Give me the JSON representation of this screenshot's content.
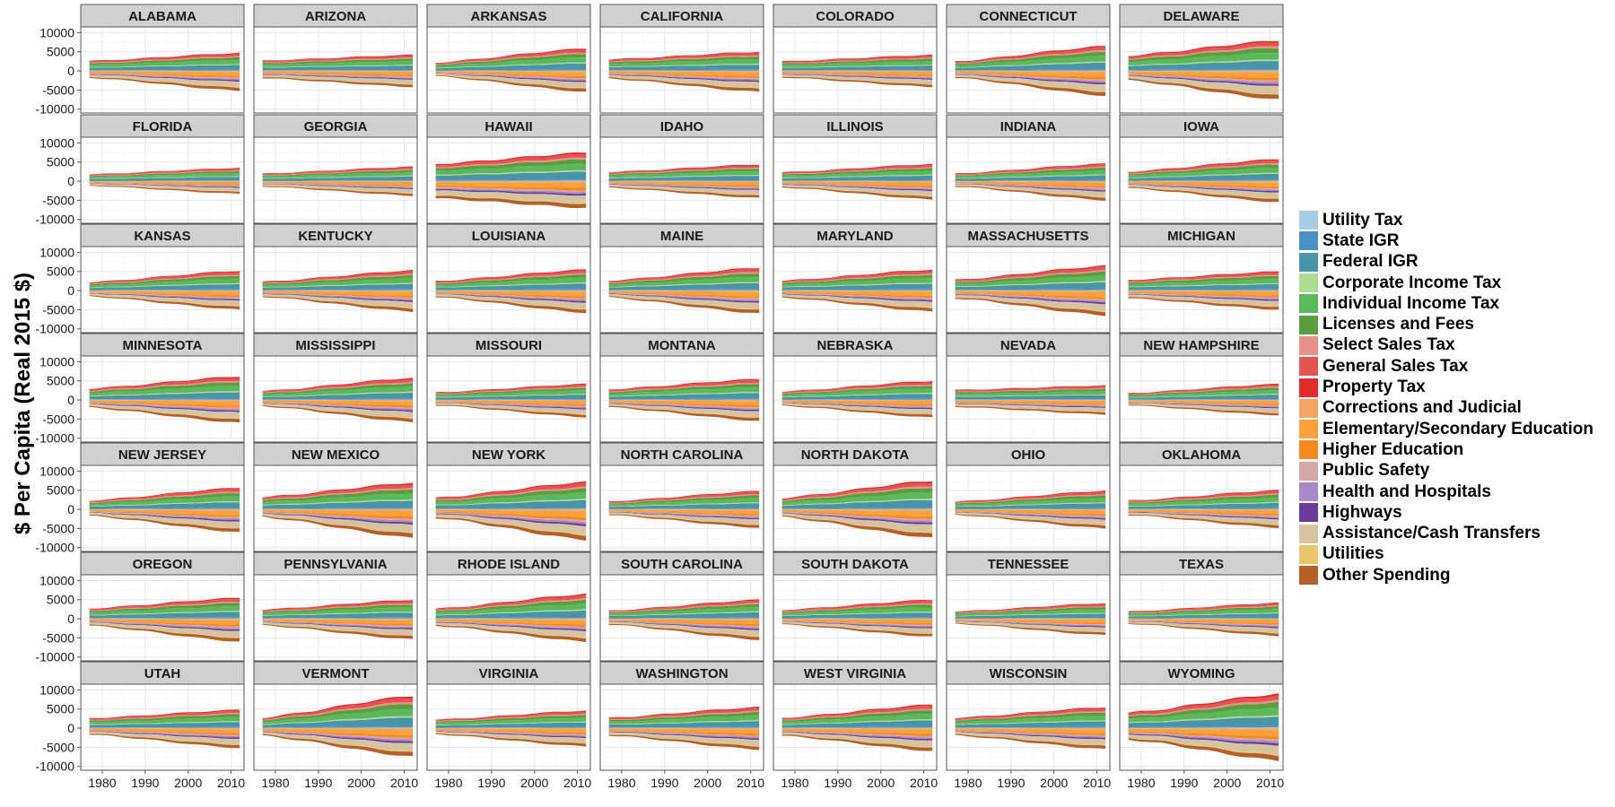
{
  "chart_data": {
    "type": "area",
    "ylabel": "$ Per Capita (Real 2015 $)",
    "xlabel": "",
    "x_range": [
      1975,
      2013
    ],
    "x_ticks": [
      1980,
      1990,
      2000,
      2010
    ],
    "ylim": [
      -11000,
      11500
    ],
    "y_ticks": [
      10000,
      5000,
      0,
      -5000,
      -10000
    ],
    "y_tick_labels": [
      "10000",
      "5000",
      "0",
      "-5000",
      "-10000"
    ],
    "grid": true,
    "legend_position": "right",
    "series": [
      {
        "name": "Utility Tax",
        "color": "#a6cee3",
        "kind": "revenue"
      },
      {
        "name": "State IGR",
        "color": "#4a90c4",
        "kind": "revenue"
      },
      {
        "name": "Federal IGR",
        "color": "#4a93a8",
        "kind": "revenue"
      },
      {
        "name": "Corporate Income Tax",
        "color": "#addc91",
        "kind": "revenue"
      },
      {
        "name": "Individual Income Tax",
        "color": "#5cb85c",
        "kind": "revenue"
      },
      {
        "name": "Licenses and Fees",
        "color": "#5a9e3f",
        "kind": "revenue"
      },
      {
        "name": "Select Sales Tax",
        "color": "#e8918b",
        "kind": "revenue"
      },
      {
        "name": "General Sales Tax",
        "color": "#e55454",
        "kind": "revenue"
      },
      {
        "name": "Property Tax",
        "color": "#e22c2c",
        "kind": "revenue"
      },
      {
        "name": "Corrections and Judicial",
        "color": "#f7a567",
        "kind": "spending"
      },
      {
        "name": "Elementary/Secondary Education",
        "color": "#fba03a",
        "kind": "spending"
      },
      {
        "name": "Higher Education",
        "color": "#f78a1f",
        "kind": "spending"
      },
      {
        "name": "Public Safety",
        "color": "#d4a7a7",
        "kind": "spending"
      },
      {
        "name": "Health and Hospitals",
        "color": "#a88bc6",
        "kind": "spending"
      },
      {
        "name": "Highways",
        "color": "#6a3d9a",
        "kind": "spending"
      },
      {
        "name": "Assistance/Cash Transfers",
        "color": "#d4c4a0",
        "kind": "spending"
      },
      {
        "name": "Utilities",
        "color": "#e8c66a",
        "kind": "spending"
      },
      {
        "name": "Other Spending",
        "color": "#b5602a",
        "kind": "spending"
      }
    ],
    "panels": [
      {
        "state": "ALABAMA",
        "revenue_1977": 2600,
        "revenue_2012": 4700,
        "spending_1977": 1800,
        "spending_2012": 5200
      },
      {
        "state": "ARIZONA",
        "revenue_1977": 2700,
        "revenue_2012": 4200,
        "spending_1977": 1900,
        "spending_2012": 4200
      },
      {
        "state": "ARKANSAS",
        "revenue_1977": 2200,
        "revenue_2012": 5900,
        "spending_1977": 1400,
        "spending_2012": 5500
      },
      {
        "state": "CALIFORNIA",
        "revenue_1977": 3000,
        "revenue_2012": 5000,
        "spending_1977": 2000,
        "spending_2012": 5500
      },
      {
        "state": "COLORADO",
        "revenue_1977": 2500,
        "revenue_2012": 4200,
        "spending_1977": 1700,
        "spending_2012": 4200
      },
      {
        "state": "CONNECTICUT",
        "revenue_1977": 2500,
        "revenue_2012": 6500,
        "spending_1977": 1800,
        "spending_2012": 6500
      },
      {
        "state": "DELAWARE",
        "revenue_1977": 4000,
        "revenue_2012": 8000,
        "spending_1977": 2500,
        "spending_2012": 7500
      },
      {
        "state": "FLORIDA",
        "revenue_1977": 1800,
        "revenue_2012": 3500,
        "spending_1977": 1200,
        "spending_2012": 3300
      },
      {
        "state": "GEORGIA",
        "revenue_1977": 2000,
        "revenue_2012": 3800,
        "spending_1977": 1400,
        "spending_2012": 3800
      },
      {
        "state": "HAWAII",
        "revenue_1977": 4500,
        "revenue_2012": 7500,
        "spending_1977": 4500,
        "spending_2012": 7000
      },
      {
        "state": "IDAHO",
        "revenue_1977": 2400,
        "revenue_2012": 4400,
        "spending_1977": 1700,
        "spending_2012": 4400
      },
      {
        "state": "ILLINOIS",
        "revenue_1977": 2300,
        "revenue_2012": 4500,
        "spending_1977": 1600,
        "spending_2012": 4800
      },
      {
        "state": "INDIANA",
        "revenue_1977": 2000,
        "revenue_2012": 4600,
        "spending_1977": 1400,
        "spending_2012": 5000
      },
      {
        "state": "IOWA",
        "revenue_1977": 2500,
        "revenue_2012": 5800,
        "spending_1977": 1800,
        "spending_2012": 5500
      },
      {
        "state": "KANSAS",
        "revenue_1977": 2200,
        "revenue_2012": 5200,
        "spending_1977": 1500,
        "spending_2012": 5000
      },
      {
        "state": "KENTUCKY",
        "revenue_1977": 2300,
        "revenue_2012": 5300,
        "spending_1977": 1600,
        "spending_2012": 5500
      },
      {
        "state": "LOUISIANA",
        "revenue_1977": 2500,
        "revenue_2012": 5500,
        "spending_1977": 1700,
        "spending_2012": 5800
      },
      {
        "state": "MAINE",
        "revenue_1977": 2600,
        "revenue_2012": 6000,
        "spending_1977": 1800,
        "spending_2012": 6000
      },
      {
        "state": "MARYLAND",
        "revenue_1977": 2600,
        "revenue_2012": 5500,
        "spending_1977": 1800,
        "spending_2012": 5500
      },
      {
        "state": "MASSACHUSETTS",
        "revenue_1977": 2800,
        "revenue_2012": 6500,
        "spending_1977": 2000,
        "spending_2012": 6500
      },
      {
        "state": "MICHIGAN",
        "revenue_1977": 2800,
        "revenue_2012": 5000,
        "spending_1977": 2000,
        "spending_2012": 5000
      },
      {
        "state": "MINNESOTA",
        "revenue_1977": 3000,
        "revenue_2012": 6200,
        "spending_1977": 2000,
        "spending_2012": 6000
      },
      {
        "state": "MISSISSIPPI",
        "revenue_1977": 2300,
        "revenue_2012": 5800,
        "spending_1977": 1600,
        "spending_2012": 5800
      },
      {
        "state": "MISSOURI",
        "revenue_1977": 2000,
        "revenue_2012": 4200,
        "spending_1977": 1400,
        "spending_2012": 4500
      },
      {
        "state": "MONTANA",
        "revenue_1977": 2800,
        "revenue_2012": 5500,
        "spending_1977": 1900,
        "spending_2012": 5500
      },
      {
        "state": "NEBRASKA",
        "revenue_1977": 2200,
        "revenue_2012": 5000,
        "spending_1977": 1500,
        "spending_2012": 4600
      },
      {
        "state": "NEVADA",
        "revenue_1977": 2600,
        "revenue_2012": 3800,
        "spending_1977": 1800,
        "spending_2012": 3800
      },
      {
        "state": "NEW HAMPSHIRE",
        "revenue_1977": 1800,
        "revenue_2012": 4200,
        "spending_1977": 1400,
        "spending_2012": 4000
      },
      {
        "state": "NEW JERSEY",
        "revenue_1977": 2300,
        "revenue_2012": 5700,
        "spending_1977": 1700,
        "spending_2012": 6000
      },
      {
        "state": "NEW MEXICO",
        "revenue_1977": 3200,
        "revenue_2012": 7000,
        "spending_1977": 2000,
        "spending_2012": 7500
      },
      {
        "state": "NEW YORK",
        "revenue_1977": 3000,
        "revenue_2012": 7200,
        "spending_1977": 2200,
        "spending_2012": 8000
      },
      {
        "state": "NORTH CAROLINA",
        "revenue_1977": 2100,
        "revenue_2012": 4800,
        "spending_1977": 1500,
        "spending_2012": 4800
      },
      {
        "state": "NORTH DAKOTA",
        "revenue_1977": 3000,
        "revenue_2012": 7500,
        "spending_1977": 2000,
        "spending_2012": 7500
      },
      {
        "state": "OHIO",
        "revenue_1977": 2000,
        "revenue_2012": 4900,
        "spending_1977": 1400,
        "spending_2012": 5000
      },
      {
        "state": "OKLAHOMA",
        "revenue_1977": 2300,
        "revenue_2012": 5000,
        "spending_1977": 1500,
        "spending_2012": 4800
      },
      {
        "state": "OREGON",
        "revenue_1977": 2700,
        "revenue_2012": 5500,
        "spending_1977": 1800,
        "spending_2012": 6000
      },
      {
        "state": "PENNSYLVANIA",
        "revenue_1977": 2400,
        "revenue_2012": 5000,
        "spending_1977": 1700,
        "spending_2012": 5400
      },
      {
        "state": "RHODE ISLAND",
        "revenue_1977": 2600,
        "revenue_2012": 6500,
        "spending_1977": 1800,
        "spending_2012": 6000
      },
      {
        "state": "SOUTH CAROLINA",
        "revenue_1977": 2100,
        "revenue_2012": 5000,
        "spending_1977": 1500,
        "spending_2012": 5500
      },
      {
        "state": "SOUTH DAKOTA",
        "revenue_1977": 2300,
        "revenue_2012": 5000,
        "spending_1977": 1500,
        "spending_2012": 4700
      },
      {
        "state": "TENNESSEE",
        "revenue_1977": 1900,
        "revenue_2012": 4100,
        "spending_1977": 1300,
        "spending_2012": 4300
      },
      {
        "state": "TEXAS",
        "revenue_1977": 1900,
        "revenue_2012": 4200,
        "spending_1977": 1300,
        "spending_2012": 4500
      },
      {
        "state": "UTAH",
        "revenue_1977": 2600,
        "revenue_2012": 4800,
        "spending_1977": 1700,
        "spending_2012": 5200
      },
      {
        "state": "VERMONT",
        "revenue_1977": 2800,
        "revenue_2012": 8500,
        "spending_1977": 2000,
        "spending_2012": 7500
      },
      {
        "state": "VIRGINIA",
        "revenue_1977": 2200,
        "revenue_2012": 4600,
        "spending_1977": 1600,
        "spending_2012": 4800
      },
      {
        "state": "WASHINGTON",
        "revenue_1977": 2700,
        "revenue_2012": 5500,
        "spending_1977": 1900,
        "spending_2012": 5600
      },
      {
        "state": "WEST VIRGINIA",
        "revenue_1977": 2700,
        "revenue_2012": 6200,
        "spending_1977": 2000,
        "spending_2012": 6000
      },
      {
        "state": "WISCONSIN",
        "revenue_1977": 2700,
        "revenue_2012": 5500,
        "spending_1977": 1900,
        "spending_2012": 5500
      },
      {
        "state": "WYOMING",
        "revenue_1977": 4000,
        "revenue_2012": 9000,
        "spending_1977": 3000,
        "spending_2012": 8500
      }
    ]
  }
}
